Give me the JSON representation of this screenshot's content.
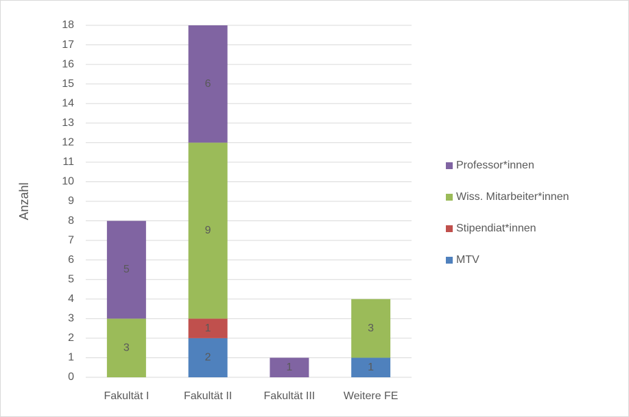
{
  "chart_data": {
    "type": "stacked_bar",
    "y_label": "Anzahl",
    "categories": [
      "Fakultät I",
      "Fakultät II",
      "Fakultät III",
      "Weitere FE"
    ],
    "series": [
      {
        "name": "MTV",
        "color": "#4f81bd",
        "values": [
          0,
          2,
          0,
          1
        ]
      },
      {
        "name": "Stipendiat*innen",
        "color": "#c0504d",
        "values": [
          0,
          1,
          0,
          0
        ]
      },
      {
        "name": "Wiss. Mitarbeiter*innen",
        "color": "#9bbb59",
        "values": [
          3,
          9,
          0,
          3
        ]
      },
      {
        "name": "Professor*innen",
        "color": "#8064a2",
        "values": [
          5,
          6,
          1,
          0
        ]
      }
    ],
    "ylim": [
      0,
      18
    ],
    "yticks": [
      0,
      1,
      2,
      3,
      4,
      5,
      6,
      7,
      8,
      9,
      10,
      11,
      12,
      13,
      14,
      15,
      16,
      17,
      18
    ],
    "grid": true,
    "legend": "right"
  }
}
